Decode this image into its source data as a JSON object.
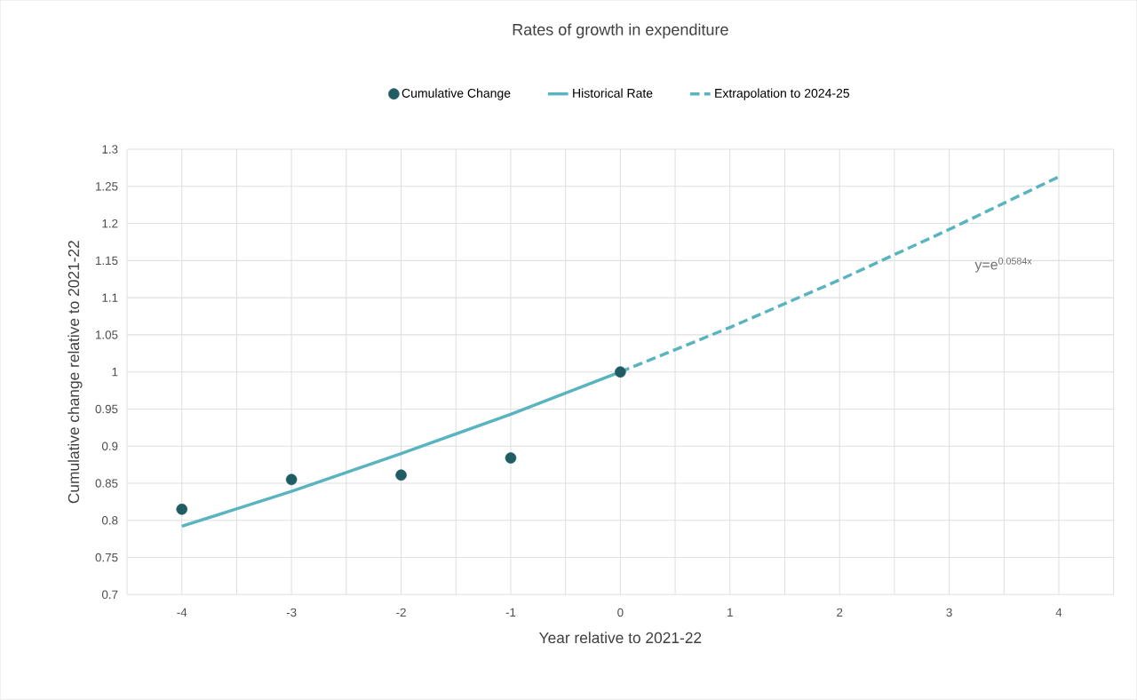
{
  "chart_data": {
    "type": "line",
    "title": "Rates of growth  in expenditure",
    "xlabel": "Year relative to 2021-22",
    "ylabel": "Cumulative change relative to 2021-22",
    "xlim": [
      -4.5,
      4.5
    ],
    "xticks": [
      {
        "value": -4.5,
        "label": null
      },
      -4,
      {
        "value": -3.5,
        "label": null
      },
      -3,
      {
        "value": -2.5,
        "label": null
      },
      -2,
      {
        "value": -1.5,
        "label": null
      },
      -1,
      {
        "value": -0.5,
        "label": null
      },
      0,
      {
        "value": 0.5,
        "label": null
      },
      1,
      {
        "value": 1.5,
        "label": null
      },
      2,
      {
        "value": 2.5,
        "label": null
      },
      3,
      {
        "value": 3.5,
        "label": null
      },
      4,
      {
        "value": 4.5,
        "label": null
      }
    ],
    "ylim": [
      0.7,
      1.3
    ],
    "yticks": [
      0.7,
      0.75,
      0.8,
      0.85,
      0.9,
      0.95,
      1,
      1.05,
      1.1,
      1.15,
      1.2,
      1.25,
      1.3
    ],
    "grid": true,
    "legend": "top",
    "series": [
      {
        "name": "Cumulative Change",
        "type": "scatter",
        "marker": "circle",
        "color": "#1f5c63",
        "x": [
          -4,
          -3,
          -2,
          -1,
          0
        ],
        "values": [
          0.815,
          0.855,
          0.861,
          0.884,
          1.0
        ]
      },
      {
        "name": "Historical Rate",
        "marker": "none",
        "line_style": "solid",
        "color": "#5ab4c0",
        "x": [
          -4,
          -3,
          -2,
          -1,
          0
        ],
        "values": [
          0.792,
          0.839,
          0.89,
          0.943,
          1.0
        ]
      },
      {
        "name": "Extrapolation to 2024-25",
        "marker": "none",
        "line_style": "dashed",
        "color": "#5ab4c0",
        "x": [
          0,
          1,
          2,
          3,
          4
        ],
        "values": [
          1.0,
          1.06,
          1.124,
          1.192,
          1.263
        ]
      }
    ],
    "annotations": [
      "y=e$^{0.0584x}$"
    ]
  }
}
